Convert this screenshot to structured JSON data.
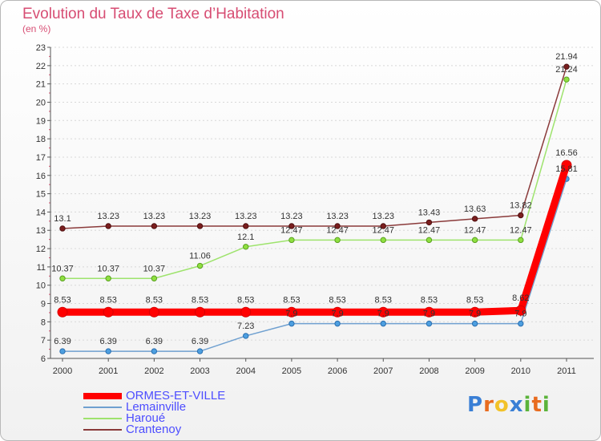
{
  "header": {
    "title": "Evolution du Taux de Taxe d’Habitation",
    "subtitle": "(en %)"
  },
  "chart_data": {
    "type": "line",
    "title": "Evolution du Taux de Taxe d’Habitation",
    "ylabel": "(en %)",
    "xlabel": "",
    "categories": [
      "2000",
      "2001",
      "2002",
      "2003",
      "2004",
      "2005",
      "2006",
      "2007",
      "2008",
      "2009",
      "2010",
      "2011"
    ],
    "ylim": [
      6,
      23
    ],
    "yticks": [
      6,
      7,
      8,
      9,
      10,
      11,
      12,
      13,
      14,
      15,
      16,
      17,
      18,
      19,
      20,
      21,
      22,
      23
    ],
    "grid": "horizontal dotted",
    "series": [
      {
        "name": "ORMES-ET-VILLE",
        "color": "#ff0000",
        "values": [
          8.53,
          8.53,
          8.53,
          8.53,
          8.53,
          8.53,
          8.53,
          8.53,
          8.53,
          8.53,
          8.62,
          16.56
        ],
        "labels": [
          "8.53",
          "8.53",
          "8.53",
          "8.53",
          "8.53",
          "8.53",
          "8.53",
          "8.53",
          "8.53",
          "8.53",
          "8.62",
          "16.56"
        ]
      },
      {
        "name": "Lemainville",
        "color": "#6fa0d0",
        "values": [
          6.39,
          6.39,
          6.39,
          6.39,
          7.23,
          7.9,
          7.9,
          7.9,
          7.9,
          7.9,
          7.9,
          15.81
        ],
        "labels": [
          "6.39",
          "6.39",
          "6.39",
          "6.39",
          "7.23",
          "7.9",
          "7.9",
          "7.9",
          "7.9",
          "7.9",
          "7.9",
          "15.81"
        ]
      },
      {
        "name": "Haroué",
        "color": "#9ee36d",
        "values": [
          10.37,
          10.37,
          10.37,
          11.06,
          12.1,
          12.47,
          12.47,
          12.47,
          12.47,
          12.47,
          12.47,
          21.24
        ],
        "labels": [
          "10.37",
          "10.37",
          "10.37",
          "11.06",
          "12.1",
          "12.47",
          "12.47",
          "12.47",
          "12.47",
          "12.47",
          "12.47",
          "21.24"
        ]
      },
      {
        "name": "Crantenoy",
        "color": "#8a3a3a",
        "values": [
          13.1,
          13.23,
          13.23,
          13.23,
          13.23,
          13.23,
          13.23,
          13.23,
          13.43,
          13.63,
          13.82,
          21.94
        ],
        "labels": [
          "13.1",
          "13.23",
          "13.23",
          "13.23",
          "13.23",
          "13.23",
          "13.23",
          "13.23",
          "13.43",
          "13.63",
          "13.82",
          "21.94"
        ]
      }
    ]
  },
  "legend": {
    "items": [
      {
        "label": "ORMES-ET-VILLE",
        "color": "#ff0000"
      },
      {
        "label": "Lemainville",
        "color": "#6fa0d0"
      },
      {
        "label": "Haroué",
        "color": "#9ee36d"
      },
      {
        "label": "Crantenoy",
        "color": "#8a3a3a"
      }
    ]
  },
  "logo": {
    "text": "Proxiti",
    "colors": [
      "#3a7fd5",
      "#e86b1f",
      "#f2c229",
      "#3a7fd5",
      "#5bb33a",
      "#e86b1f",
      "#5bb33a"
    ]
  }
}
